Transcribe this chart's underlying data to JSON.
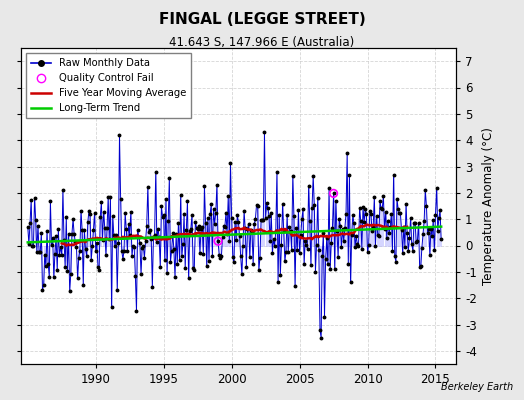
{
  "title": "FINGAL (LEGGE STREET)",
  "subtitle": "41.643 S, 147.966 E (Australia)",
  "ylabel": "Temperature Anomaly (°C)",
  "watermark": "Berkeley Earth",
  "ylim": [
    -4.5,
    7.5
  ],
  "yticks": [
    -4,
    -3,
    -2,
    -1,
    0,
    1,
    2,
    3,
    4,
    5,
    6,
    7
  ],
  "xlim": [
    1984.5,
    2016.5
  ],
  "xticks": [
    1990,
    1995,
    2000,
    2005,
    2010,
    2015
  ],
  "background_color": "#e8e8e8",
  "plot_bg_color": "#ffffff",
  "grid_color": "#cccccc",
  "line_color_raw": "#0000cc",
  "line_color_moving_avg": "#cc0000",
  "line_color_trend": "#00cc00",
  "marker_color": "#000000",
  "qc_fail_color": "#ff00ff"
}
